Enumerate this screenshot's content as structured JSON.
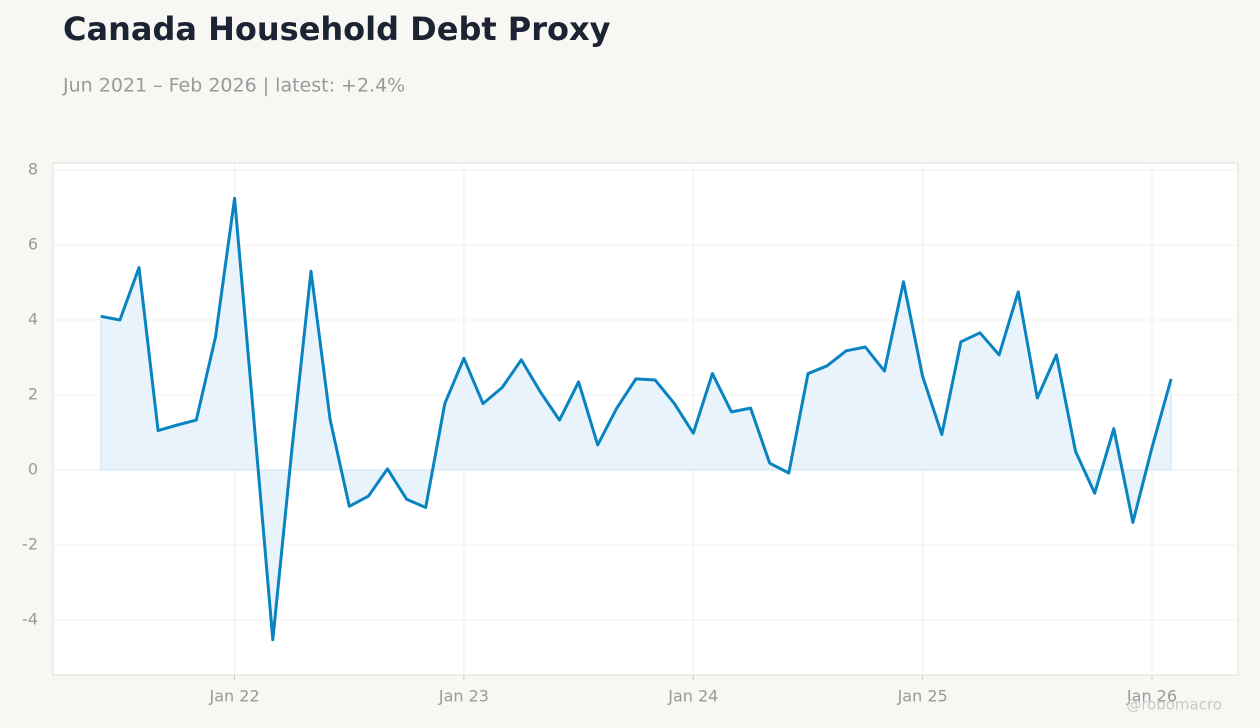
{
  "chart_data": {
    "type": "line",
    "title": "Canada Household Debt Proxy",
    "subtitle": "Jun 2021 – Feb 2026 | latest: +2.4%",
    "watermark": "@robomacro",
    "x": [
      "2021-06",
      "2021-07",
      "2021-08",
      "2021-09",
      "2021-10",
      "2021-11",
      "2021-12",
      "2022-01",
      "2022-02",
      "2022-03",
      "2022-04",
      "2022-05",
      "2022-06",
      "2022-07",
      "2022-08",
      "2022-09",
      "2022-10",
      "2022-11",
      "2022-12",
      "2023-01",
      "2023-02",
      "2023-03",
      "2023-04",
      "2023-05",
      "2023-06",
      "2023-07",
      "2023-08",
      "2023-09",
      "2023-10",
      "2023-11",
      "2023-12",
      "2024-01",
      "2024-02",
      "2024-03",
      "2024-04",
      "2024-05",
      "2024-06",
      "2024-07",
      "2024-08",
      "2024-09",
      "2024-10",
      "2024-11",
      "2024-12",
      "2025-01",
      "2025-02",
      "2025-03",
      "2025-04",
      "2025-05",
      "2025-06",
      "2025-07",
      "2025-08",
      "2025-09",
      "2025-10",
      "2025-11",
      "2025-12",
      "2026-01",
      "2026-02"
    ],
    "series": [
      {
        "color": "#0a84c1",
        "fill": "#e8f3fb",
        "values": [
          4.1,
          4.0,
          5.4,
          1.05,
          1.2,
          1.33,
          3.55,
          7.25,
          1.4,
          -4.53,
          0.55,
          5.3,
          1.35,
          -0.97,
          -0.7,
          0.03,
          -0.78,
          -1.0,
          1.77,
          2.98,
          1.77,
          2.2,
          2.94,
          2.08,
          1.33,
          2.35,
          0.67,
          1.65,
          2.43,
          2.4,
          1.78,
          0.98,
          2.57,
          1.55,
          1.65,
          0.18,
          -0.08,
          2.57,
          2.78,
          3.18,
          3.28,
          2.64,
          5.02,
          2.5,
          0.95,
          3.42,
          3.66,
          3.07,
          4.75,
          1.92,
          3.07,
          0.5,
          -0.62,
          1.1,
          -1.4,
          0.6,
          2.43
        ]
      }
    ],
    "xlim": [
      "2021-03-16",
      "2026-05-16"
    ],
    "xticks": [
      {
        "value": "2022-01",
        "label": "Jan 22"
      },
      {
        "value": "2023-01",
        "label": "Jan 23"
      },
      {
        "value": "2024-01",
        "label": "Jan 24"
      },
      {
        "value": "2025-01",
        "label": "Jan 25"
      },
      {
        "value": "2026-01",
        "label": "Jan 26"
      }
    ],
    "ylim": [
      -5.47,
      8.19
    ],
    "yticks": [
      -4,
      -2,
      0,
      2,
      4,
      6,
      8
    ],
    "grid": true
  }
}
